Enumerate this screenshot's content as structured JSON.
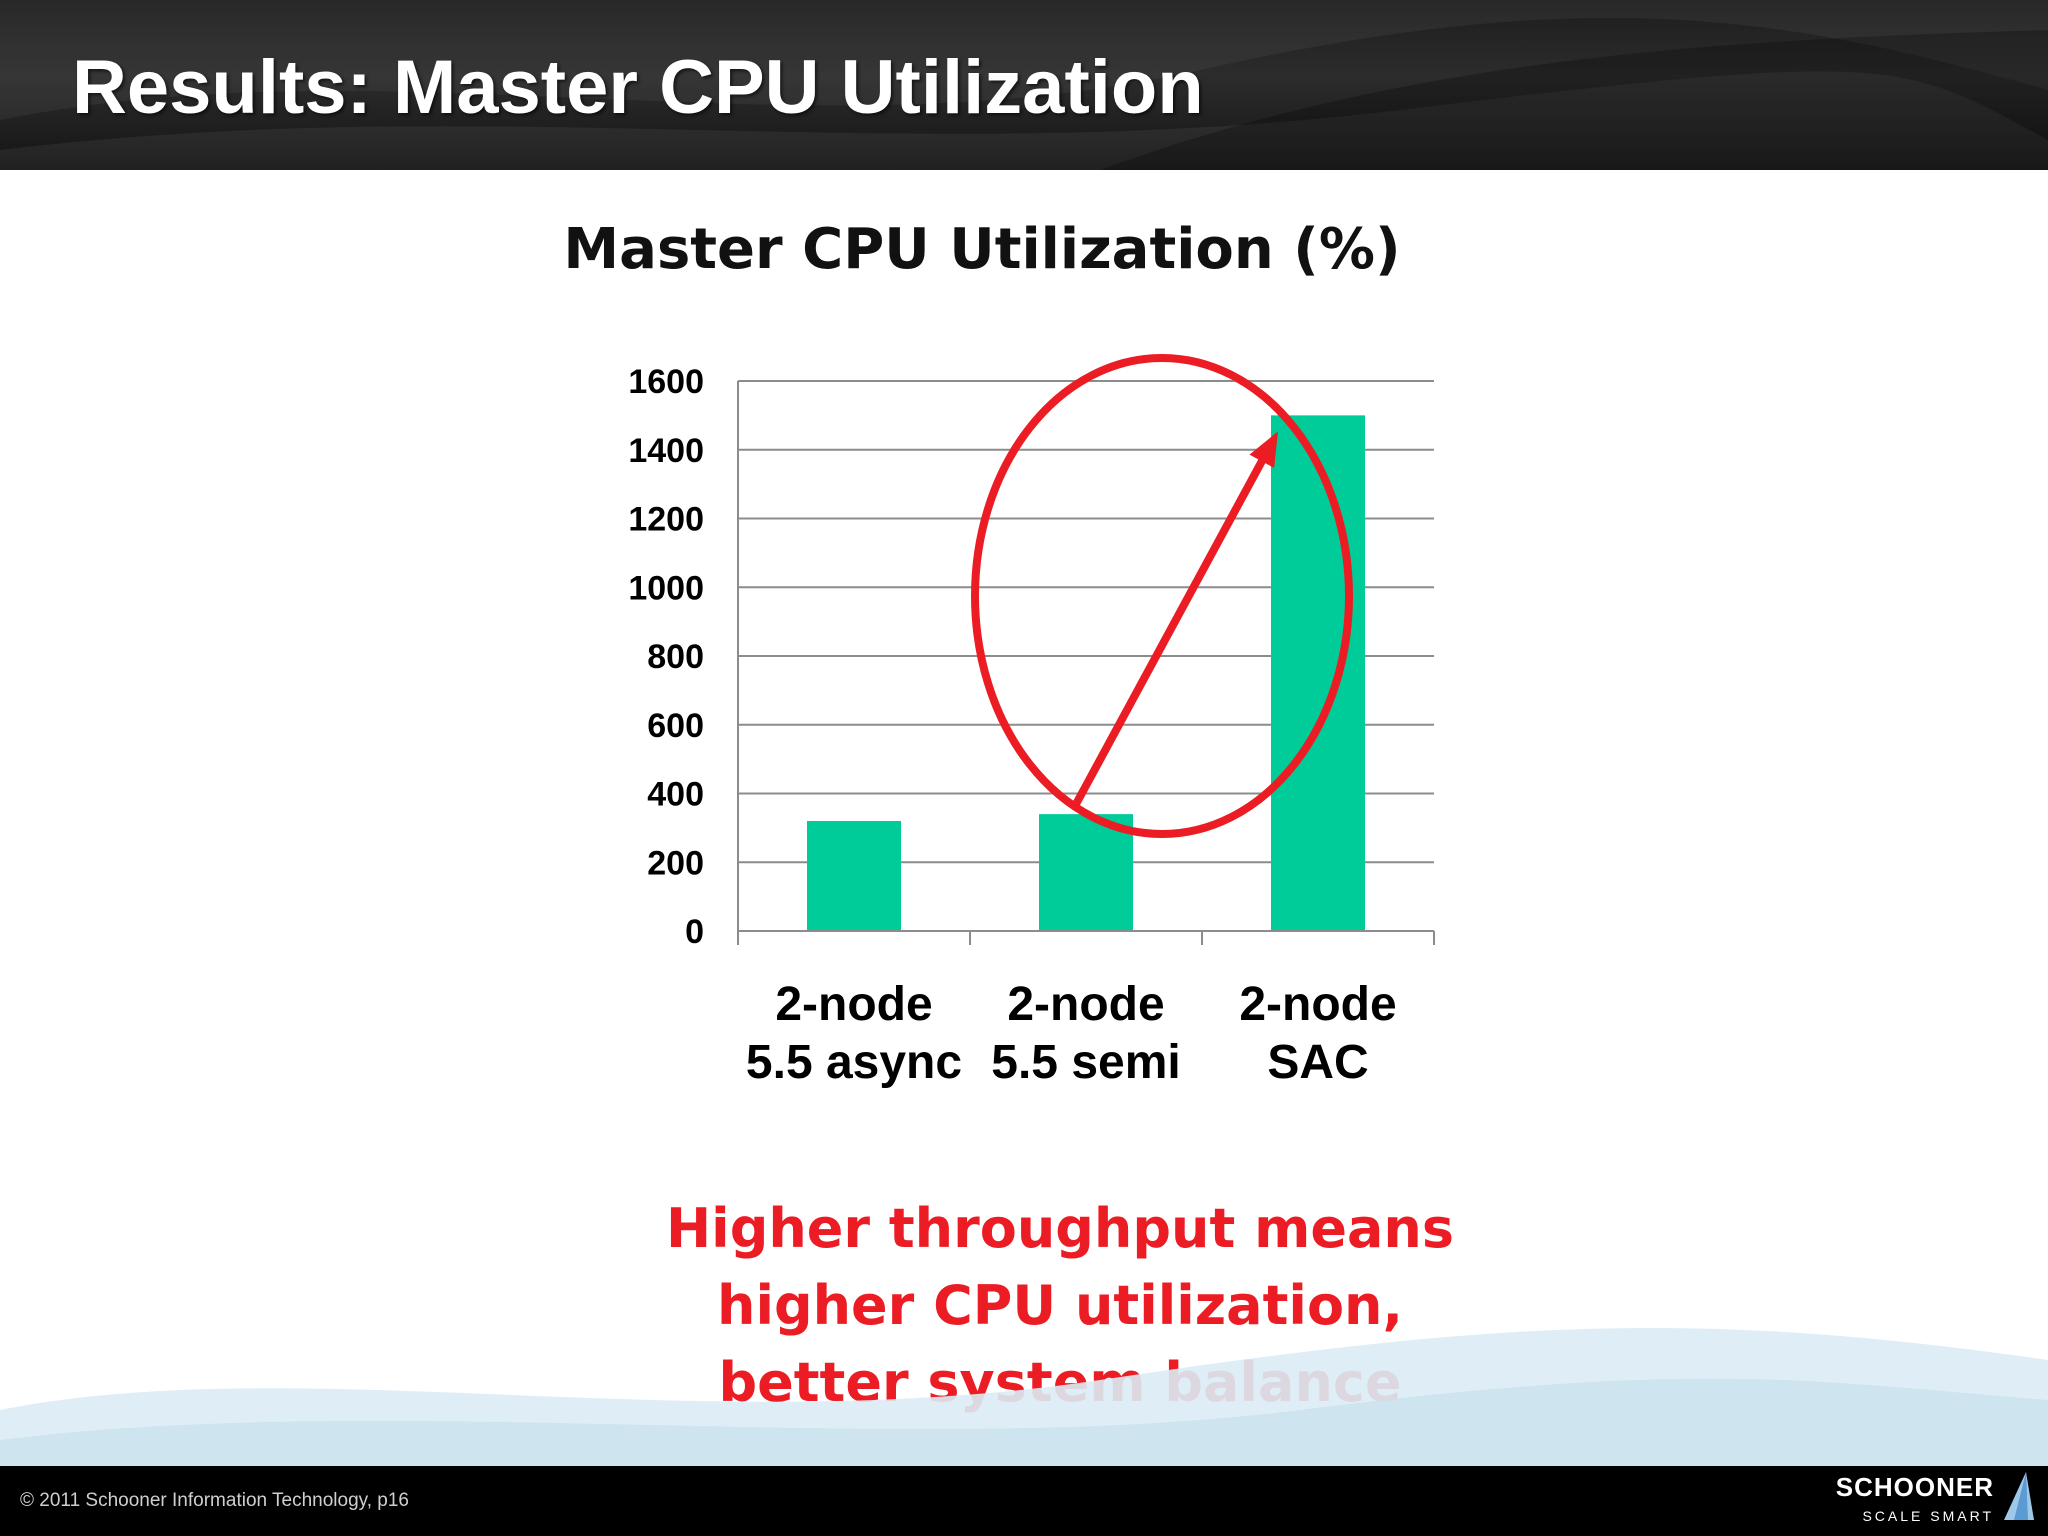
{
  "slide": {
    "title": "Results: Master CPU Utilization",
    "callout_lines": [
      "Higher throughput means",
      "higher CPU utilization,",
      "better system balance"
    ],
    "footer": {
      "copyright": "© 2011  Schooner Information Technology, p16",
      "logo_name": "SCHOONER",
      "logo_tagline": "SCALE SMART"
    }
  },
  "colors": {
    "bar": "#00cc99",
    "annotation": "#ec1c24",
    "gridline": "#8c8c8c",
    "header": "#222222"
  },
  "icons": [
    "sail-icon"
  ],
  "chart_data": {
    "type": "bar",
    "title": "Master CPU Utilization (%)",
    "xlabel": "",
    "ylabel": "",
    "categories": [
      [
        "2-node",
        "5.5 async"
      ],
      [
        "2-node",
        "5.5 semi"
      ],
      [
        "2-node",
        "SAC"
      ]
    ],
    "values": [
      320,
      340,
      1500
    ],
    "ylim": [
      0,
      1600
    ],
    "yticks": [
      0,
      200,
      400,
      600,
      800,
      1000,
      1200,
      1400,
      1600
    ],
    "grid": true,
    "legend": "none",
    "annotations": [
      {
        "type": "ellipse",
        "description": "red circle highlighting the 5.5 semi and SAC bars"
      },
      {
        "type": "arrow",
        "from_category": 1,
        "to_category": 2
      }
    ]
  }
}
